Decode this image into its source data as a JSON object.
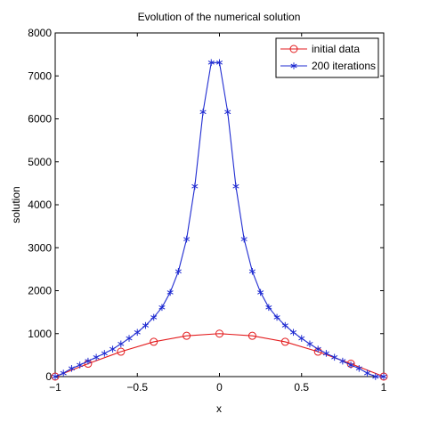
{
  "chart_data": {
    "type": "line",
    "title": "Evolution of the numerical solution",
    "xlabel": "x",
    "ylabel": "solution",
    "xlim": [
      -1,
      1
    ],
    "ylim": [
      0,
      8000
    ],
    "xticks": [
      -1,
      -0.5,
      0,
      0.5,
      1
    ],
    "xtick_labels": [
      "−1",
      "−0.5",
      "0",
      "0.5",
      "1"
    ],
    "yticks": [
      0,
      1000,
      2000,
      3000,
      4000,
      5000,
      6000,
      7000,
      8000
    ],
    "ytick_labels": [
      "0",
      "1000",
      "2000",
      "3000",
      "4000",
      "5000",
      "6000",
      "7000",
      "8000"
    ],
    "grid": false,
    "legend_position": "top-right",
    "series": [
      {
        "name": "initial data",
        "color": "#e31a1c",
        "marker": "circle",
        "x": [
          -1,
          -0.8,
          -0.6,
          -0.4,
          -0.2,
          0,
          0.2,
          0.4,
          0.6,
          0.8,
          1
        ],
        "y": [
          0,
          300,
          580,
          810,
          950,
          1000,
          950,
          810,
          580,
          300,
          0
        ]
      },
      {
        "name": "200 iterations",
        "color": "#1f2bd1",
        "marker": "star",
        "x": [
          -1,
          -0.95,
          -0.9,
          -0.85,
          -0.8,
          -0.75,
          -0.7,
          -0.65,
          -0.6,
          -0.55,
          -0.5,
          -0.45,
          -0.4,
          -0.35,
          -0.3,
          -0.25,
          -0.2,
          -0.15,
          -0.1,
          -0.05,
          0,
          0.05,
          0.1,
          0.15,
          0.2,
          0.25,
          0.3,
          0.35,
          0.4,
          0.45,
          0.5,
          0.55,
          0.6,
          0.65,
          0.7,
          0.75,
          0.8,
          0.85,
          0.9,
          0.95,
          1
        ],
        "y": [
          0,
          80,
          190,
          270,
          360,
          450,
          540,
          640,
          760,
          890,
          1030,
          1190,
          1380,
          1610,
          1960,
          2450,
          3200,
          4430,
          6160,
          7310,
          7310,
          6160,
          4430,
          3200,
          2450,
          1960,
          1610,
          1380,
          1190,
          1030,
          890,
          760,
          640,
          540,
          450,
          360,
          270,
          190,
          80,
          0,
          0
        ]
      }
    ]
  }
}
